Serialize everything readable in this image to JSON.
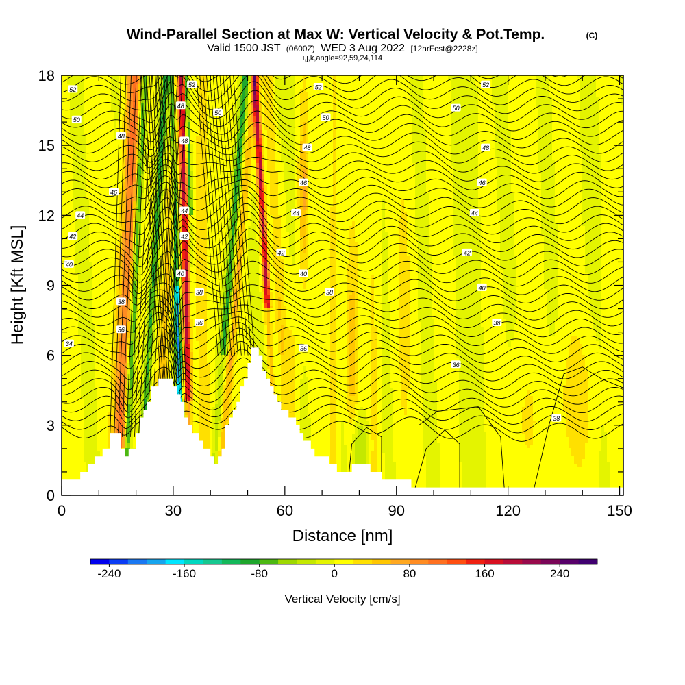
{
  "chart_data": {
    "type": "heatmap",
    "title": "Wind-Parallel Section at Max W: Vertical Velocity & Pot.Temp.",
    "copyright": "(C)",
    "subtitle_main": "Valid 1500 JST",
    "subtitle_utc": "(0600Z)",
    "subtitle_date": "WED 3 Aug 2022",
    "subtitle_fcst": "[12hrFcst@2228z]",
    "subtitle_indices": "i,j,k,angle=92,59,24,114",
    "xlabel": "Distance [nm]",
    "ylabel": "Height [Kft MSL]",
    "xlim": [
      0,
      151
    ],
    "ylim": [
      0,
      18
    ],
    "x_ticks": [
      "0",
      "30",
      "60",
      "90",
      "120",
      "150"
    ],
    "x_tick_values": [
      0,
      30,
      60,
      90,
      120,
      150
    ],
    "y_ticks": [
      "0",
      "3",
      "6",
      "9",
      "12",
      "15",
      "18"
    ],
    "y_tick_values": [
      0,
      3,
      6,
      9,
      12,
      15,
      18
    ],
    "colorbar": {
      "label": "Vertical Velocity [cm/s]",
      "tick_labels": [
        "-240",
        "-160",
        "-80",
        "0",
        "80",
        "160",
        "240"
      ],
      "tick_values": [
        -240,
        -160,
        -80,
        0,
        80,
        160,
        240
      ],
      "range": [
        -260,
        280
      ],
      "step": 20,
      "colors": [
        "#0000ee",
        "#0a3cf5",
        "#1a78f2",
        "#16a5ee",
        "#00e6ff",
        "#00d8c0",
        "#16c890",
        "#14b85a",
        "#1ea62c",
        "#4cb812",
        "#9ed800",
        "#c4e800",
        "#e4f400",
        "#ffff00",
        "#ffe000",
        "#ffc600",
        "#ffa820",
        "#ff8c22",
        "#ff7020",
        "#ff4e10",
        "#f02010",
        "#d81020",
        "#b80c38",
        "#980a4c",
        "#7a0658",
        "#58006a",
        "#400070"
      ]
    },
    "theta_contour_labels": [
      {
        "value": "52",
        "x": 3,
        "y": 17.4
      },
      {
        "value": "50",
        "x": 4,
        "y": 16.1
      },
      {
        "value": "48",
        "x": 16,
        "y": 15.4
      },
      {
        "value": "46",
        "x": 14,
        "y": 13.0
      },
      {
        "value": "44",
        "x": 5,
        "y": 12.0
      },
      {
        "value": "42",
        "x": 3,
        "y": 11.1
      },
      {
        "value": "40",
        "x": 2,
        "y": 9.9
      },
      {
        "value": "38",
        "x": 16,
        "y": 8.3
      },
      {
        "value": "36",
        "x": 16,
        "y": 7.1
      },
      {
        "value": "34",
        "x": 2,
        "y": 6.5
      },
      {
        "value": "52",
        "x": 35,
        "y": 17.6
      },
      {
        "value": "48",
        "x": 32,
        "y": 16.7
      },
      {
        "value": "48",
        "x": 33,
        "y": 15.2
      },
      {
        "value": "50",
        "x": 42,
        "y": 16.4
      },
      {
        "value": "44",
        "x": 33,
        "y": 12.2
      },
      {
        "value": "42",
        "x": 33,
        "y": 11.1
      },
      {
        "value": "40",
        "x": 32,
        "y": 9.5
      },
      {
        "value": "38",
        "x": 37,
        "y": 8.7
      },
      {
        "value": "36",
        "x": 37,
        "y": 7.4
      },
      {
        "value": "52",
        "x": 69,
        "y": 17.5
      },
      {
        "value": "50",
        "x": 71,
        "y": 16.2
      },
      {
        "value": "48",
        "x": 66,
        "y": 14.9
      },
      {
        "value": "46",
        "x": 65,
        "y": 13.4
      },
      {
        "value": "44",
        "x": 63,
        "y": 12.1
      },
      {
        "value": "42",
        "x": 59,
        "y": 10.4
      },
      {
        "value": "40",
        "x": 65,
        "y": 9.5
      },
      {
        "value": "38",
        "x": 72,
        "y": 8.7
      },
      {
        "value": "36",
        "x": 65,
        "y": 6.3
      },
      {
        "value": "52",
        "x": 114,
        "y": 17.6
      },
      {
        "value": "50",
        "x": 106,
        "y": 16.6
      },
      {
        "value": "48",
        "x": 114,
        "y": 14.9
      },
      {
        "value": "46",
        "x": 113,
        "y": 13.4
      },
      {
        "value": "44",
        "x": 111,
        "y": 12.1
      },
      {
        "value": "42",
        "x": 109,
        "y": 10.4
      },
      {
        "value": "40",
        "x": 113,
        "y": 8.9
      },
      {
        "value": "38",
        "x": 117,
        "y": 7.4
      },
      {
        "value": "36",
        "x": 106,
        "y": 5.6
      },
      {
        "value": "38",
        "x": 133,
        "y": 3.3
      }
    ]
  }
}
